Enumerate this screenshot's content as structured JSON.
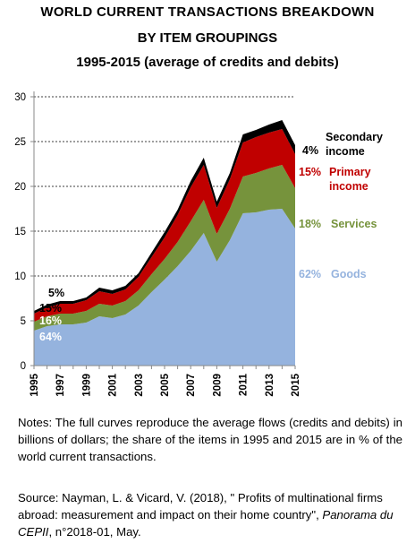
{
  "title_line1": "WORLD CURRENT TRANSACTIONS BREAKDOWN",
  "title_line2": "BY ITEM GROUPINGS",
  "title_line3": "1995-2015 (average of credits and debits)",
  "notes": "Notes: The full curves reproduce the average flows (credits and debits) in billions of dollars; the share of the items in 1995 and 2015 are  in % of the world current  transactions.",
  "source_main": "Source: Nayman, L. & Vicard, V. (2018), \" Profits of multinational firms abroad: measurement and impact on their home country\",",
  "source_italic": "Panorama du CEPII",
  "source_tail": ", n°2018-01, May.",
  "chart_data": {
    "type": "area",
    "stacked": true,
    "x": [
      1995,
      1996,
      1997,
      1998,
      1999,
      2000,
      2001,
      2002,
      2003,
      2004,
      2005,
      2006,
      2007,
      2008,
      2009,
      2010,
      2011,
      2012,
      2013,
      2014,
      2015
    ],
    "x_tick_labels": [
      "1995",
      "1997",
      "1999",
      "2001",
      "2003",
      "2005",
      "2007",
      "2009",
      "2011",
      "2013",
      "2015"
    ],
    "ylim": [
      0,
      30
    ],
    "y_ticks": [
      0,
      5,
      10,
      15,
      20,
      25,
      30
    ],
    "grid": "horizontal dashed",
    "series": [
      {
        "name": "Goods",
        "color": "#95b3de",
        "values": [
          3.9,
          4.4,
          4.6,
          4.6,
          4.8,
          5.5,
          5.3,
          5.7,
          6.7,
          8.2,
          9.6,
          11.1,
          12.8,
          14.8,
          11.6,
          14.0,
          17.0,
          17.1,
          17.4,
          17.5,
          15.3
        ]
      },
      {
        "name": "Services",
        "color": "#76933c",
        "values": [
          1.0,
          1.1,
          1.2,
          1.2,
          1.3,
          1.4,
          1.4,
          1.5,
          1.7,
          2.0,
          2.3,
          2.7,
          3.3,
          3.7,
          3.1,
          3.5,
          4.1,
          4.4,
          4.6,
          4.9,
          4.5
        ]
      },
      {
        "name": "Primary income",
        "color": "#c00000",
        "values": [
          0.9,
          1.0,
          1.1,
          1.1,
          1.2,
          1.4,
          1.3,
          1.3,
          1.5,
          1.9,
          2.4,
          3.0,
          3.8,
          3.9,
          2.9,
          3.3,
          3.8,
          4.0,
          4.0,
          4.0,
          3.8
        ]
      },
      {
        "name": "Secondary income",
        "color": "#000000",
        "values": [
          0.3,
          0.3,
          0.3,
          0.3,
          0.3,
          0.4,
          0.4,
          0.4,
          0.4,
          0.5,
          0.6,
          0.6,
          0.7,
          0.8,
          0.7,
          0.7,
          0.9,
          0.8,
          0.9,
          1.0,
          1.0
        ]
      }
    ],
    "shares_1995": [
      {
        "series": "Secondary income",
        "label": "5%",
        "color": "#000000"
      },
      {
        "series": "Primary income",
        "label": "15%",
        "color": "#000000"
      },
      {
        "series": "Services",
        "label": "16%",
        "color": "#ffffff"
      },
      {
        "series": "Goods",
        "label": "64%",
        "color": "#ffffff"
      }
    ],
    "shares_2015": [
      {
        "series": "Secondary income",
        "pct": "4%",
        "name_lines": [
          "Secondary",
          "income"
        ],
        "color": "#000000"
      },
      {
        "series": "Primary income",
        "pct": "15%",
        "name_lines": [
          "Primary",
          "income"
        ],
        "color": "#c00000"
      },
      {
        "series": "Services",
        "pct": "18%",
        "name_lines": [
          "Services"
        ],
        "color": "#76933c"
      },
      {
        "series": "Goods",
        "pct": "62%",
        "name_lines": [
          "Goods"
        ],
        "color": "#95b3de"
      }
    ]
  }
}
